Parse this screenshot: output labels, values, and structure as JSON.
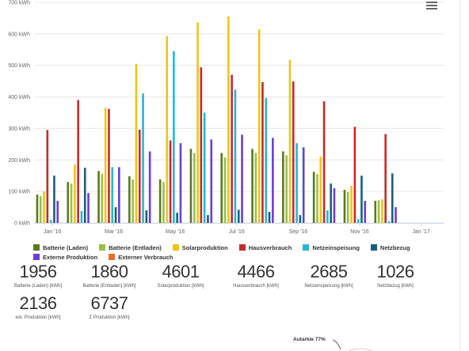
{
  "chart_data": {
    "type": "bar",
    "x": [
      "Jan '16",
      "Feb '16",
      "Mar '16",
      "Apr '16",
      "May '16",
      "Jun '16",
      "Jul '16",
      "Aug '16",
      "Sep '16",
      "Oct '16",
      "Nov '16",
      "Dec '16"
    ],
    "xticks": [
      "Jan '16",
      "Mar '16",
      "May '16",
      "Jul '16",
      "Sep '16",
      "Nov '16",
      "Jan '17"
    ],
    "yticks": [
      "0 kWh",
      "100 kWh",
      "200 kWh",
      "300 kWh",
      "400 kWh",
      "500 kWh",
      "600 kWh",
      "700 kWh"
    ],
    "ylim": [
      0,
      700
    ],
    "grid": true,
    "legend_position": "bottom",
    "series": [
      {
        "name": "Batterie (Laden)",
        "color": "#5a7a1e",
        "values": [
          90,
          130,
          165,
          148,
          138,
          235,
          222,
          235,
          227,
          162,
          105,
          70
        ]
      },
      {
        "name": "Batterie (Entladen)",
        "color": "#9bbf4a",
        "values": [
          85,
          125,
          155,
          138,
          130,
          222,
          208,
          222,
          215,
          155,
          98,
          72
        ]
      },
      {
        "name": "Solarproduktion",
        "color": "#f0c419",
        "values": [
          100,
          185,
          365,
          505,
          593,
          636,
          655,
          614,
          518,
          210,
          118,
          75
        ]
      },
      {
        "name": "Hausverbrauch",
        "color": "#c62a2a",
        "values": [
          295,
          390,
          362,
          296,
          262,
          494,
          470,
          447,
          449,
          386,
          305,
          282
        ]
      },
      {
        "name": "Netzeinspeisung",
        "color": "#27b6d6",
        "values": [
          10,
          38,
          177,
          411,
          545,
          350,
          423,
          397,
          253,
          40,
          12,
          5
        ]
      },
      {
        "name": "Netzbezug",
        "color": "#1a5f7a",
        "values": [
          150,
          175,
          50,
          40,
          32,
          25,
          42,
          35,
          25,
          125,
          150,
          157
        ]
      },
      {
        "name": "Externe Produktion",
        "color": "#6a3fd0",
        "values": [
          70,
          95,
          177,
          227,
          253,
          265,
          280,
          270,
          240,
          110,
          70,
          50
        ]
      },
      {
        "name": "Externer Verbrauch",
        "color": "#e8702a",
        "values": [
          0,
          0,
          0,
          0,
          0,
          0,
          0,
          0,
          0,
          0,
          0,
          0
        ]
      }
    ]
  },
  "menu": {
    "icon": "hamburger-menu-icon"
  },
  "stats": [
    {
      "value": "1956",
      "label": "Batterie (Laden) [kWh]"
    },
    {
      "value": "1860",
      "label": "Batterie (Entladen) [kWh]"
    },
    {
      "value": "4601",
      "label": "Solarproduktion [kWh]"
    },
    {
      "value": "4466",
      "label": "Hausverbrauch [kWh]"
    },
    {
      "value": "2685",
      "label": "Netzeinspeisung [kWh]"
    },
    {
      "value": "1026",
      "label": "Netzbezug [kWh]"
    },
    {
      "value": "2136",
      "label": "ext. Produktion [kWh]"
    },
    {
      "value": "6737",
      "label": "Σ Produktion [kWh]"
    }
  ],
  "autarkie": {
    "label": "Autarkie 77%"
  }
}
